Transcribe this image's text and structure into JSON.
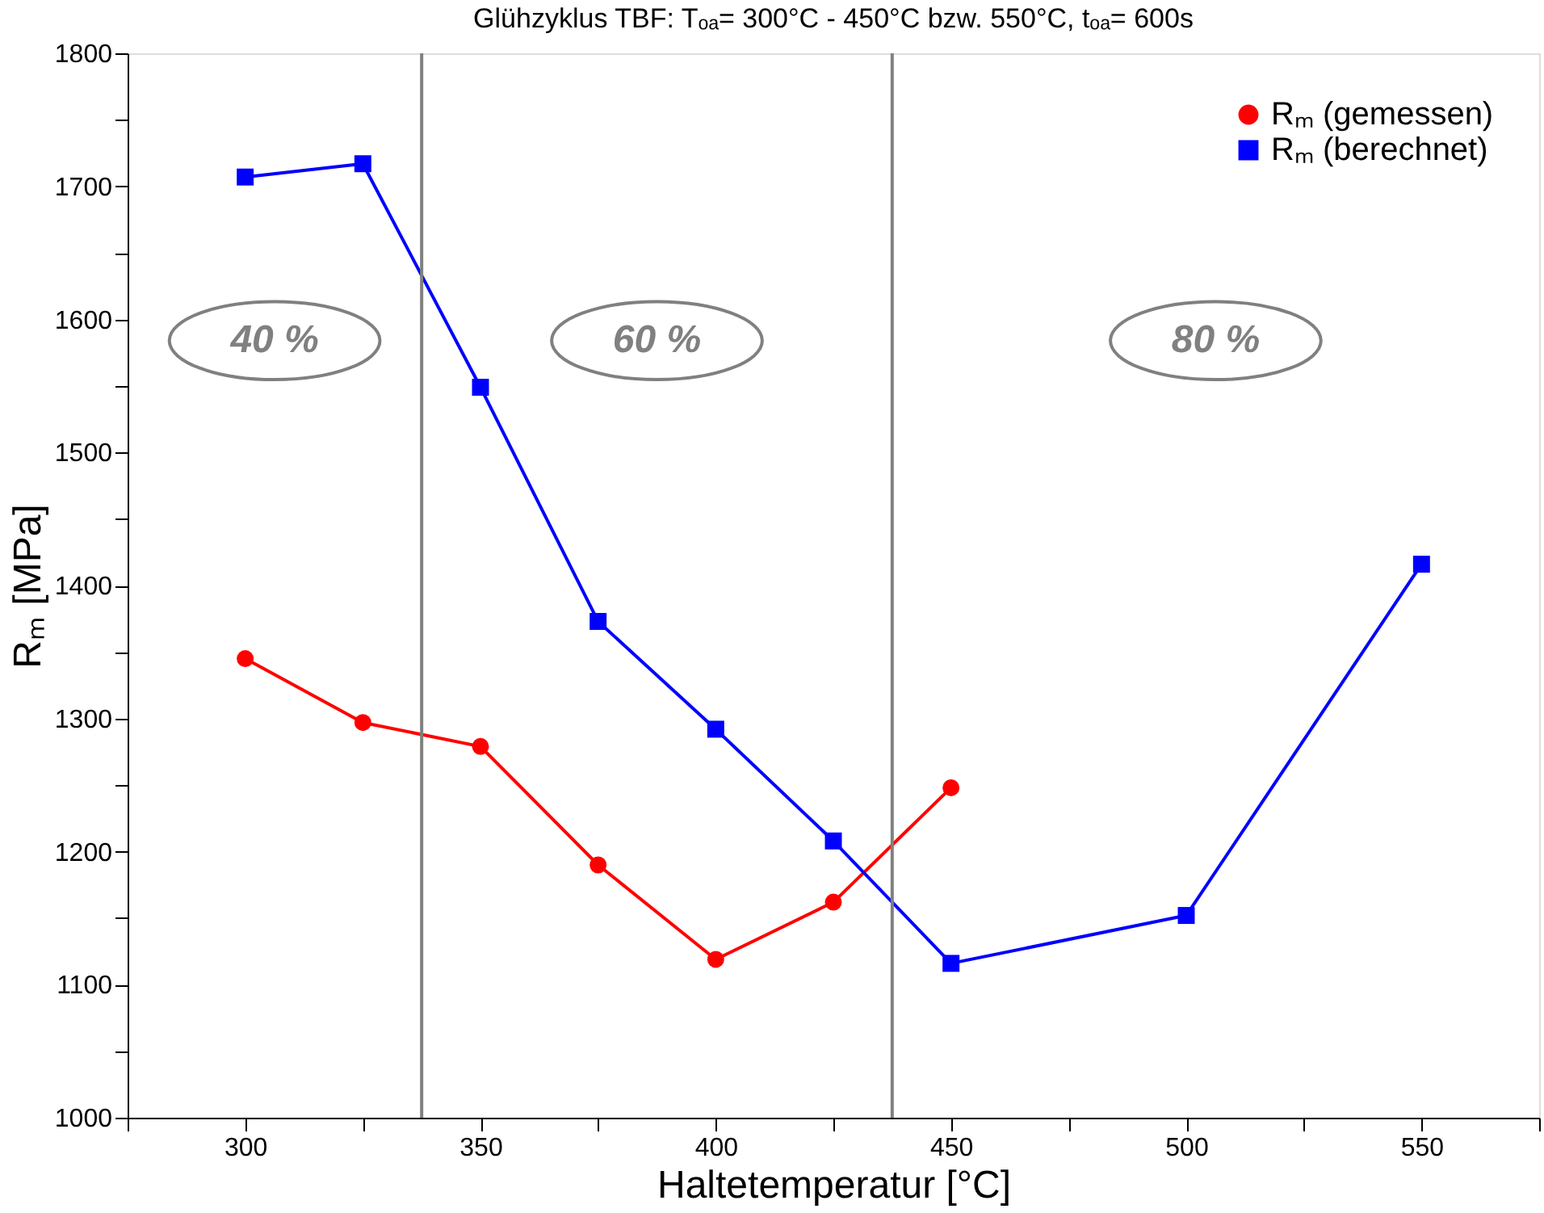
{
  "chart_data": {
    "type": "line",
    "title": "Glühzyklus TBF: Tₒₐ= 300°C - 450°C bzw. 550°C, tₒₐ= 600s",
    "xlabel": "Haltetemperatur [°C]",
    "ylabel": "Rₘ [MPa]",
    "series": [
      {
        "name": "Rₘ (gemessen)",
        "color": "#ff0000",
        "marker": "circle",
        "x": [
          300,
          325,
          350,
          375,
          400,
          425,
          450
        ],
        "values": [
          1345,
          1297,
          1279,
          1190,
          1119,
          1162,
          1248
        ]
      },
      {
        "name": "Rₘ (berechnet)",
        "color": "#0000ff",
        "marker": "square",
        "x": [
          300,
          325,
          350,
          375,
          400,
          425,
          450,
          500,
          550
        ],
        "values": [
          1707,
          1717,
          1549,
          1373,
          1292,
          1208,
          1116,
          1152,
          1416
        ]
      }
    ],
    "xlim": [
      275,
      575
    ],
    "ylim": [
      1000,
      1800
    ],
    "xticks": [
      {
        "value": 275,
        "label": null
      },
      300,
      {
        "value": 325,
        "label": null
      },
      350,
      {
        "value": 375,
        "label": null
      },
      400,
      {
        "value": 425,
        "label": null
      },
      450,
      {
        "value": 475,
        "label": null
      },
      500,
      {
        "value": 525,
        "label": null
      },
      550,
      {
        "value": 575,
        "label": null
      }
    ],
    "yticks": [
      1000,
      {
        "value": 1050,
        "label": null
      },
      1100,
      {
        "value": 1150,
        "label": null
      },
      1200,
      {
        "value": 1250,
        "label": null
      },
      1300,
      {
        "value": 1350,
        "label": null
      },
      1400,
      {
        "value": 1450,
        "label": null
      },
      1500,
      {
        "value": 1550,
        "label": null
      },
      1600,
      {
        "value": 1650,
        "label": null
      },
      1700,
      {
        "value": 1750,
        "label": null
      },
      1800
    ],
    "ref_lines": [
      {
        "axis": "x",
        "value": 337.5,
        "color": "#808080"
      },
      {
        "axis": "x",
        "value": 437.5,
        "color": "#808080"
      }
    ],
    "annotations": [
      "40 %",
      "60 %",
      "80 %"
    ],
    "legend": "top right",
    "grid": false,
    "line_style": "solid"
  }
}
